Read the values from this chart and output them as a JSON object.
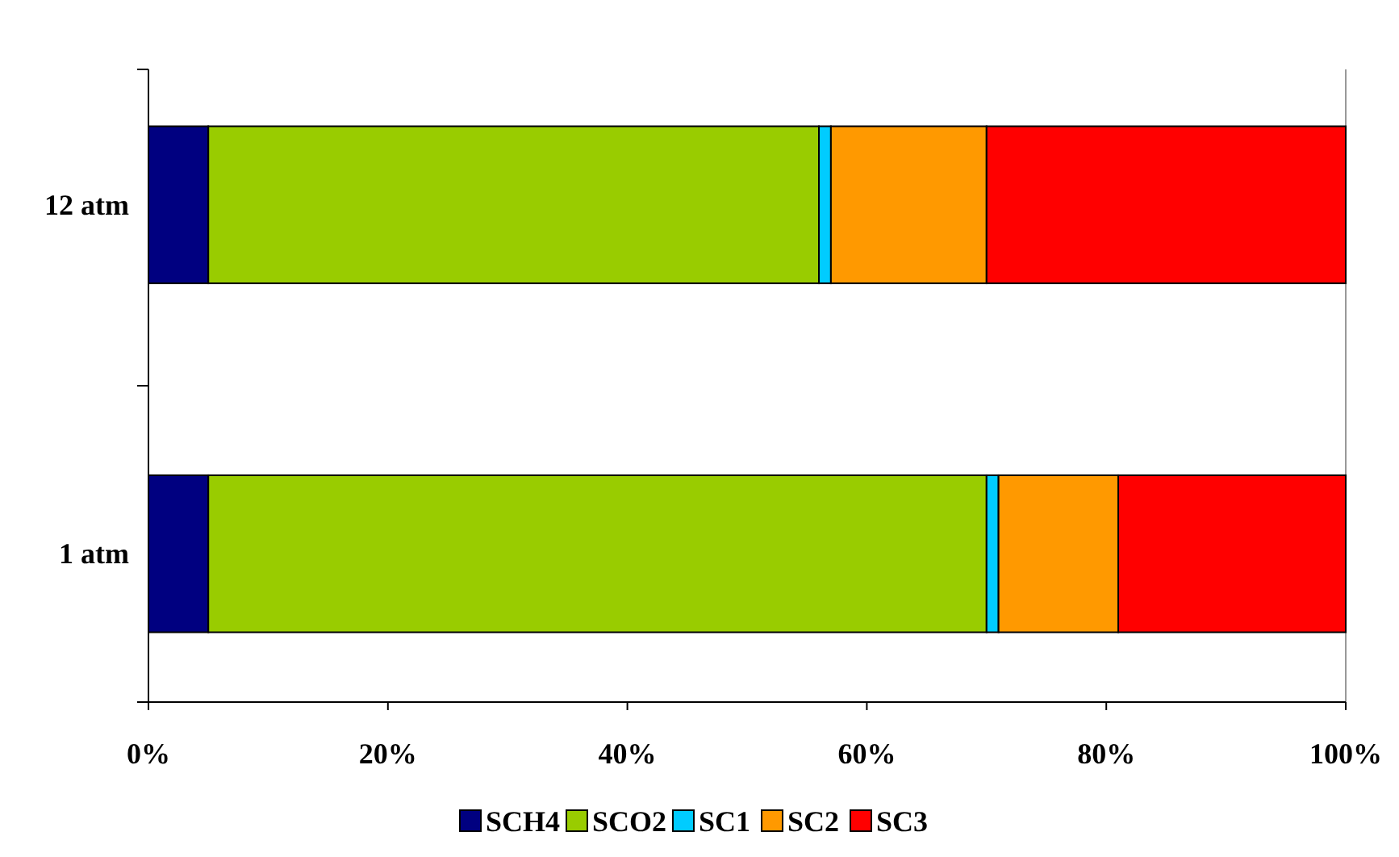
{
  "chart_data": {
    "type": "bar",
    "orientation": "horizontal",
    "stacked": true,
    "categories": [
      "12 atm",
      "1 atm"
    ],
    "series": [
      {
        "name": "SCH4",
        "color": "#000080",
        "values": [
          5,
          5
        ]
      },
      {
        "name": "SCO2",
        "color": "#99cc00",
        "values": [
          51,
          65
        ]
      },
      {
        "name": "SC1",
        "color": "#00ccff",
        "values": [
          1,
          1
        ]
      },
      {
        "name": "SC2",
        "color": "#ff9900",
        "values": [
          13,
          10
        ]
      },
      {
        "name": "SC3",
        "color": "#ff0000",
        "values": [
          30,
          19
        ]
      }
    ],
    "xlim": [
      0,
      100
    ],
    "xticks": [
      {
        "value": 0,
        "label": "0%"
      },
      {
        "value": 20,
        "label": "20%"
      },
      {
        "value": 40,
        "label": "40%"
      },
      {
        "value": 60,
        "label": "60%"
      },
      {
        "value": 80,
        "label": "80%"
      },
      {
        "value": 100,
        "label": "100%"
      }
    ],
    "legend": "bottom",
    "grid": false
  }
}
